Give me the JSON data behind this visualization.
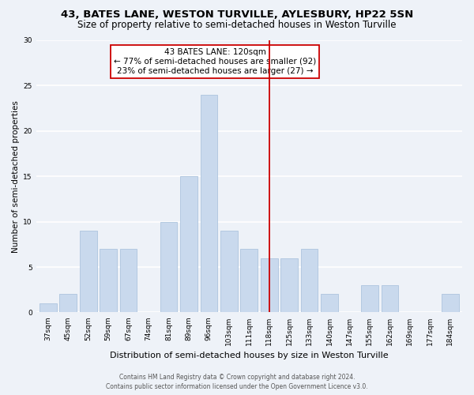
{
  "title": "43, BATES LANE, WESTON TURVILLE, AYLESBURY, HP22 5SN",
  "subtitle": "Size of property relative to semi-detached houses in Weston Turville",
  "xlabel": "Distribution of semi-detached houses by size in Weston Turville",
  "ylabel": "Number of semi-detached properties",
  "bar_labels": [
    "37sqm",
    "45sqm",
    "52sqm",
    "59sqm",
    "67sqm",
    "74sqm",
    "81sqm",
    "89sqm",
    "96sqm",
    "103sqm",
    "111sqm",
    "118sqm",
    "125sqm",
    "133sqm",
    "140sqm",
    "147sqm",
    "155sqm",
    "162sqm",
    "169sqm",
    "177sqm",
    "184sqm"
  ],
  "bar_values": [
    1,
    2,
    9,
    7,
    7,
    0,
    10,
    15,
    24,
    9,
    7,
    6,
    6,
    7,
    2,
    0,
    3,
    3,
    0,
    0,
    2
  ],
  "bar_color": "#c9d9ed",
  "bar_edge_color": "#adc4de",
  "highlight_line_x_label": "118sqm",
  "highlight_line_color": "#cc0000",
  "annotation_title": "43 BATES LANE: 120sqm",
  "annotation_line1": "← 77% of semi-detached houses are smaller (92)",
  "annotation_line2": "23% of semi-detached houses are larger (27) →",
  "annotation_box_color": "#ffffff",
  "annotation_box_edge_color": "#cc0000",
  "ylim": [
    0,
    30
  ],
  "yticks": [
    0,
    5,
    10,
    15,
    20,
    25,
    30
  ],
  "footnote1": "Contains HM Land Registry data © Crown copyright and database right 2024.",
  "footnote2": "Contains public sector information licensed under the Open Government Licence v3.0.",
  "background_color": "#eef2f8",
  "title_fontsize": 9.5,
  "subtitle_fontsize": 8.5,
  "ylabel_fontsize": 7.5,
  "xlabel_fontsize": 8,
  "tick_fontsize": 6.5,
  "annotation_fontsize": 7.5,
  "footnote_fontsize": 5.5
}
